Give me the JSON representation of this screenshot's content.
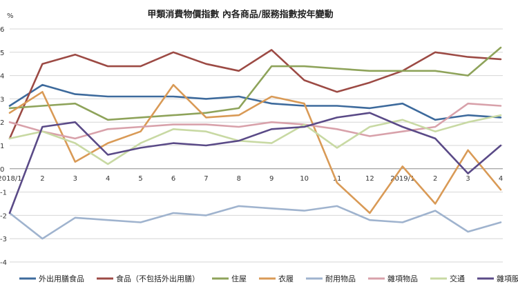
{
  "chart_data": {
    "type": "line",
    "title": "甲類消費物價指數 內各商品/服務指數按年變動",
    "unit_label": "%",
    "xlabel": "",
    "ylabel": "",
    "ylim": [
      -4,
      6
    ],
    "y_tick_labels": [
      "6",
      "5",
      "4",
      "3",
      "2",
      "1",
      "0",
      "-1",
      "-2",
      "-3",
      "-4"
    ],
    "grid": "horizontal",
    "legend_position": "bottom",
    "categories": [
      "2018/1",
      "2",
      "3",
      "4",
      "5",
      "6",
      "7",
      "8",
      "9",
      "10",
      "11",
      "12",
      "2019/1",
      "2",
      "3",
      "4"
    ],
    "series": [
      {
        "name": "外出用膳食品",
        "color": "#3d6a9c",
        "values": [
          2.7,
          3.6,
          3.2,
          3.1,
          3.1,
          3.1,
          3.0,
          3.1,
          2.8,
          2.7,
          2.7,
          2.6,
          2.8,
          2.1,
          2.3,
          2.2
        ]
      },
      {
        "name": "食品（不包括外出用膳）",
        "color": "#9c4a44",
        "values": [
          1.3,
          4.5,
          4.9,
          4.4,
          4.4,
          5.0,
          4.5,
          4.2,
          5.1,
          3.8,
          3.3,
          3.7,
          4.2,
          5.0,
          4.8,
          4.7
        ]
      },
      {
        "name": "住屋",
        "color": "#8ea35a",
        "values": [
          2.6,
          2.7,
          2.8,
          2.1,
          2.2,
          2.3,
          2.4,
          2.6,
          4.4,
          4.4,
          4.3,
          4.2,
          4.2,
          4.2,
          4.0,
          5.2
        ]
      },
      {
        "name": "衣履",
        "color": "#d99a56",
        "values": [
          2.4,
          3.3,
          0.3,
          1.1,
          1.6,
          3.6,
          2.2,
          2.3,
          3.1,
          2.8,
          -0.6,
          -1.9,
          0.1,
          -1.5,
          0.8,
          -0.9
        ]
      },
      {
        "name": "耐用物品",
        "color": "#9fb3ce",
        "values": [
          -1.9,
          -3.0,
          -2.1,
          -2.2,
          -2.3,
          -1.9,
          -2.0,
          -1.6,
          -1.7,
          -1.8,
          -1.6,
          -2.2,
          -2.3,
          -1.8,
          -2.7,
          -2.3
        ]
      },
      {
        "name": "雜項物品",
        "color": "#d8a1aa",
        "values": [
          2.0,
          1.6,
          1.3,
          1.7,
          1.8,
          1.9,
          1.9,
          1.8,
          2.0,
          1.9,
          1.7,
          1.4,
          1.6,
          1.8,
          2.8,
          2.7
        ]
      },
      {
        "name": "交通",
        "color": "#c8d9a3",
        "values": [
          1.3,
          1.6,
          1.1,
          0.2,
          1.1,
          1.7,
          1.6,
          1.2,
          1.1,
          1.9,
          0.9,
          1.8,
          2.1,
          1.6,
          2.0,
          2.3
        ]
      },
      {
        "name": "雜項服務",
        "color": "#5a4a87",
        "values": [
          -1.9,
          1.8,
          2.0,
          0.6,
          0.9,
          1.1,
          1.0,
          1.2,
          1.7,
          1.8,
          2.2,
          2.4,
          1.8,
          1.3,
          -0.2,
          1.0
        ]
      }
    ]
  }
}
